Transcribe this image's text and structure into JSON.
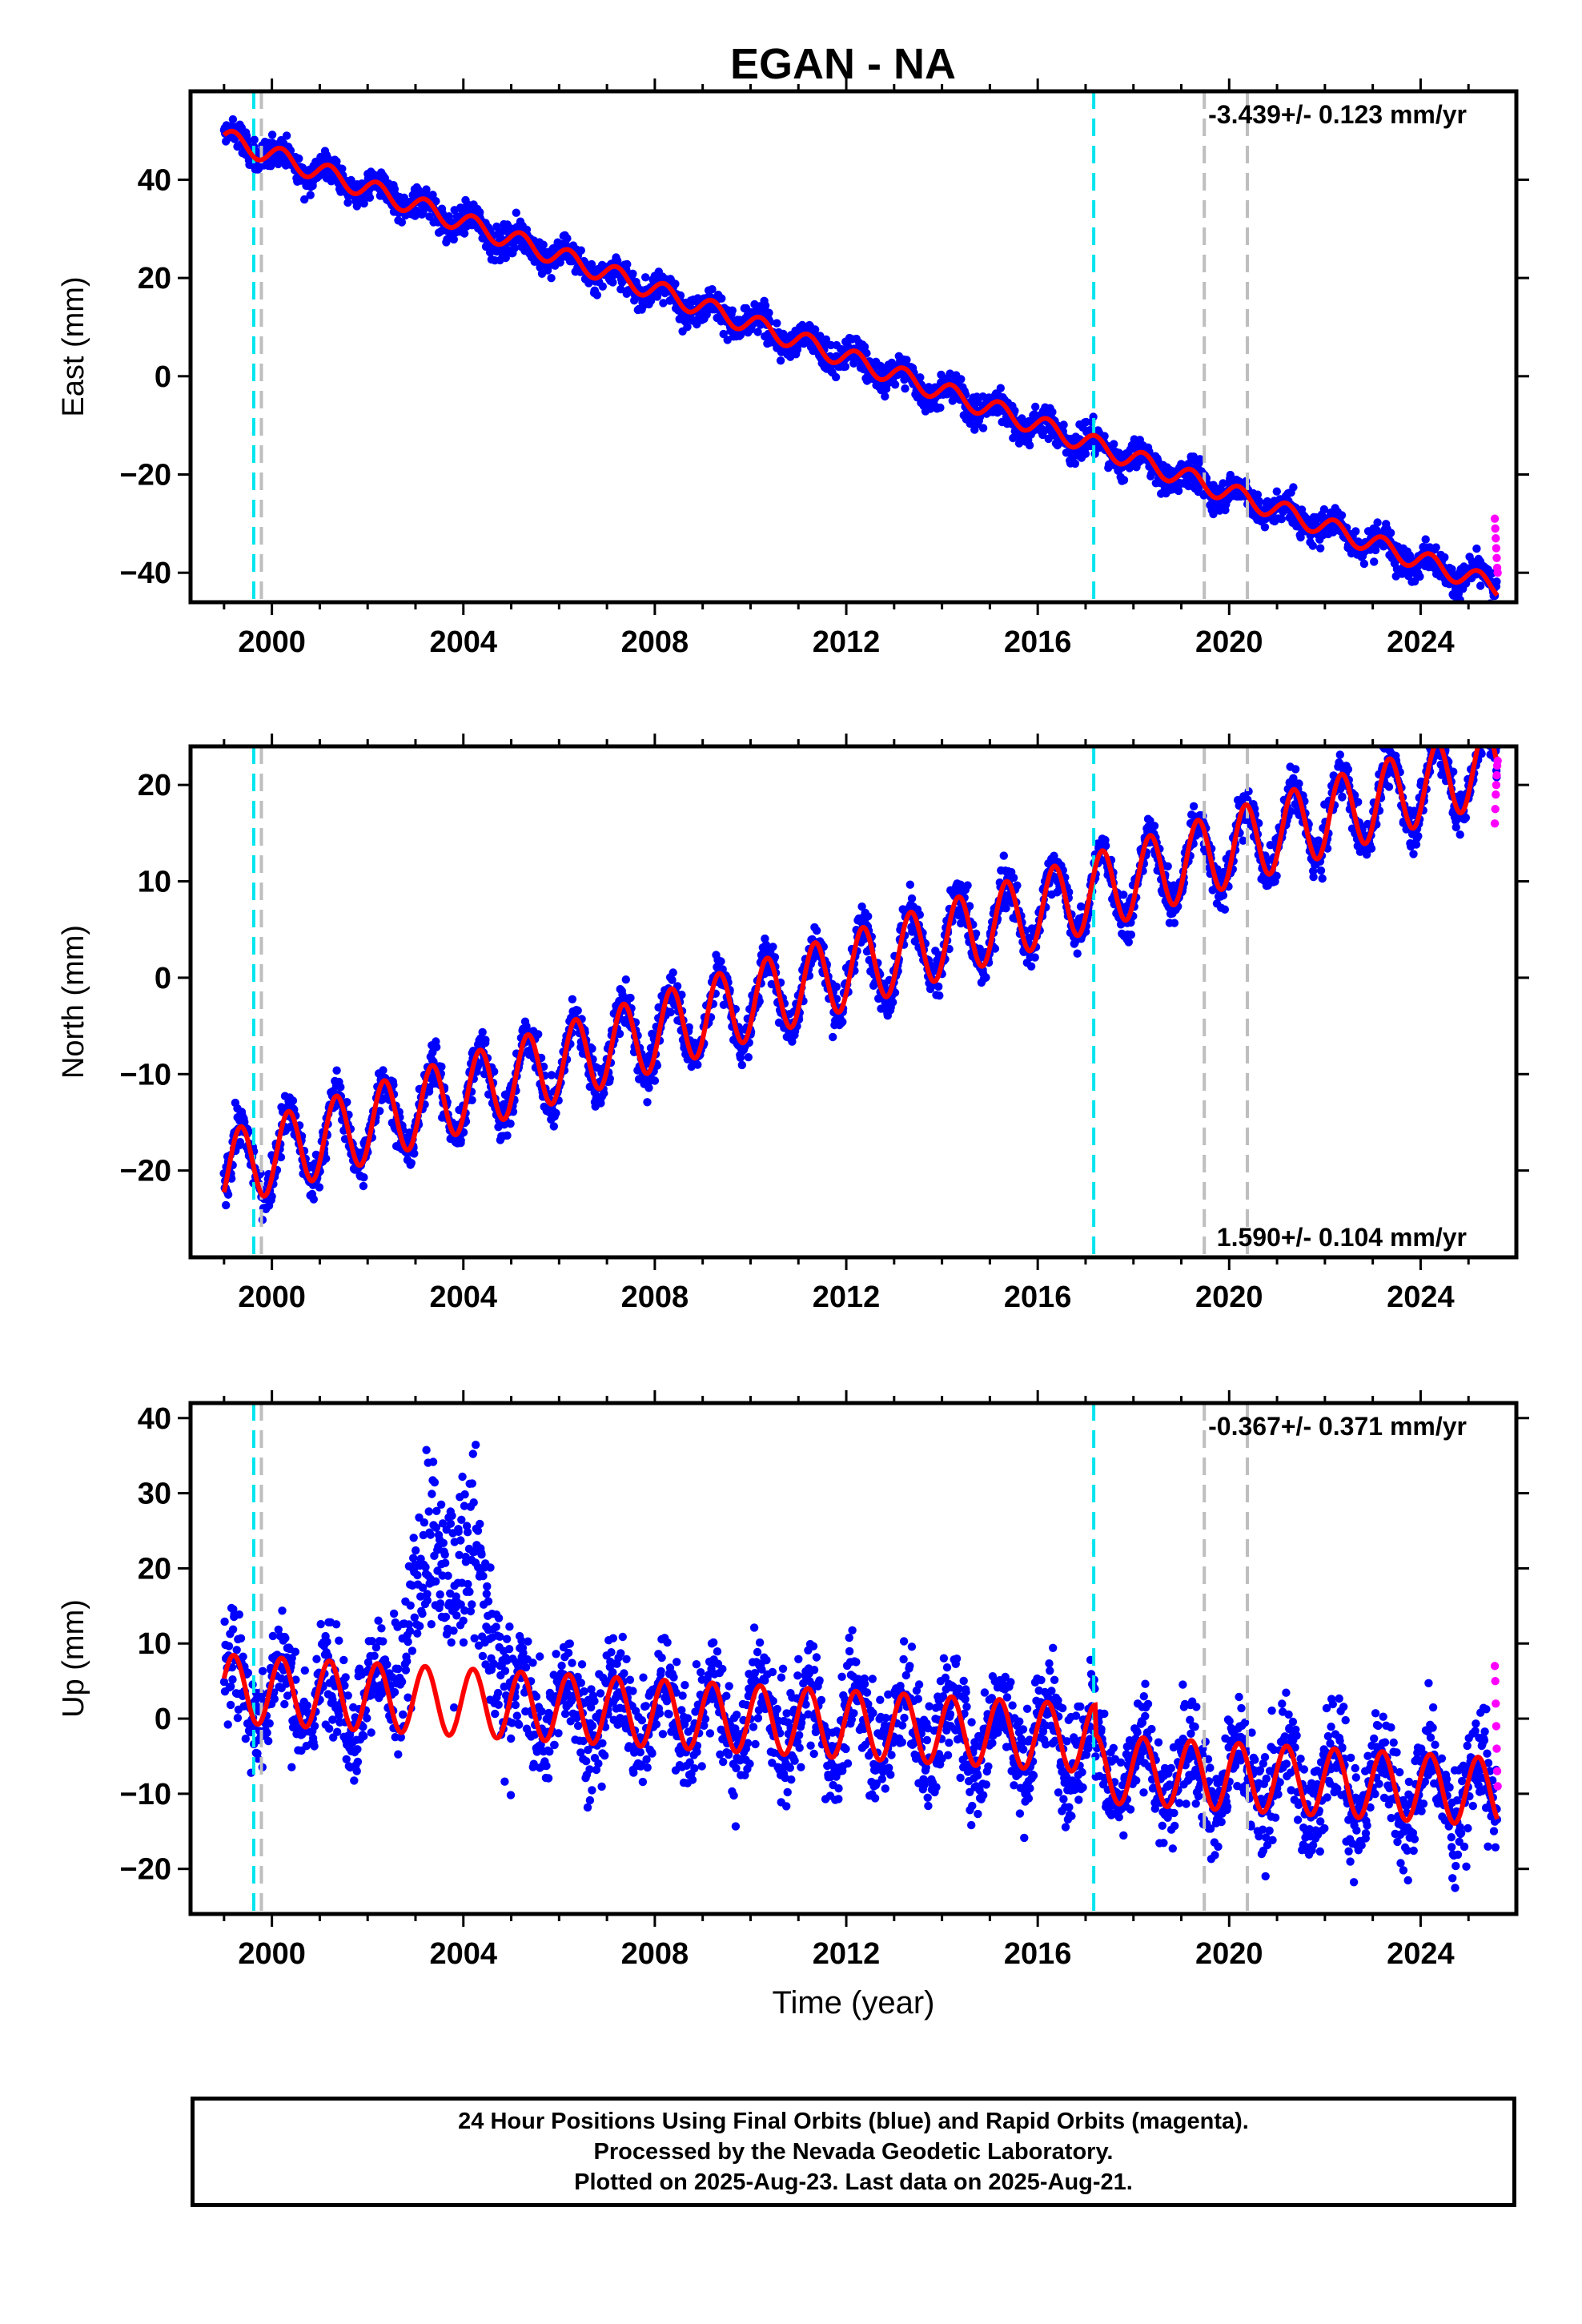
{
  "title": "EGAN - NA",
  "xlabel": "Time (year)",
  "footer": {
    "line1": "24 Hour Positions Using Final Orbits (blue) and Rapid Orbits (magenta).",
    "line2": "Processed by the Nevada Geodetic Laboratory.",
    "line3": "Plotted on 2025-Aug-23. Last data on 2025-Aug-21."
  },
  "colors": {
    "final_orbits": "#0000ff",
    "rapid_orbits": "#ff00ff",
    "model": "#ff0000",
    "equipment_change": "#00e5ee",
    "other_event": "#bebebe"
  },
  "chart_data": [
    {
      "type": "scatter",
      "ylabel": "East (mm)",
      "rate_label": "-3.439+/- 0.123 mm/yr",
      "rate_position": "top-right",
      "xlim": [
        1998.3,
        2026.0
      ],
      "ylim": [
        -46,
        58
      ],
      "xticks": [
        2000,
        2004,
        2008,
        2012,
        2016,
        2020,
        2024
      ],
      "yticks": [
        -40,
        -20,
        0,
        20,
        40
      ],
      "data_start": 1999.0,
      "data_end": 2025.6,
      "trend": {
        "value_at_1999": 48.5,
        "rate_mm_yr": -3.439
      },
      "seasonal_amplitude": 2.0,
      "scatter_spread": 2.2,
      "offsets": [
        {
          "year": 1999.7,
          "mm": 0
        }
      ],
      "model_series": [
        {
          "x": 1999.0,
          "y": 51.5
        },
        {
          "x": 1999.5,
          "y": 46.0
        },
        {
          "x": 2000.0,
          "y": 44.8
        },
        {
          "x": 2001.0,
          "y": 41.3
        },
        {
          "x": 2002.0,
          "y": 37.9
        },
        {
          "x": 2003.0,
          "y": 34.5
        },
        {
          "x": 2004.0,
          "y": 31.0
        },
        {
          "x": 2005.0,
          "y": 27.6
        },
        {
          "x": 2006.0,
          "y": 24.2
        },
        {
          "x": 2008.0,
          "y": 17.3
        },
        {
          "x": 2010.0,
          "y": 10.4
        },
        {
          "x": 2012.0,
          "y": 3.5
        },
        {
          "x": 2014.0,
          "y": -3.4
        },
        {
          "x": 2016.0,
          "y": -10.3
        },
        {
          "x": 2017.2,
          "y": -14.3
        },
        {
          "x": 2018.0,
          "y": -12.0
        },
        {
          "x": 2020.0,
          "y": -18.9
        },
        {
          "x": 2022.0,
          "y": -25.8
        },
        {
          "x": 2024.0,
          "y": -32.7
        },
        {
          "x": 2025.6,
          "y": -39.5
        }
      ],
      "rapid_points": [
        {
          "x": 2025.55,
          "y": -29
        },
        {
          "x": 2025.56,
          "y": -31
        },
        {
          "x": 2025.57,
          "y": -33
        },
        {
          "x": 2025.58,
          "y": -35
        },
        {
          "x": 2025.59,
          "y": -37
        },
        {
          "x": 2025.6,
          "y": -39
        },
        {
          "x": 2025.61,
          "y": -40
        }
      ]
    },
    {
      "type": "scatter",
      "ylabel": "North (mm)",
      "rate_label": "1.590+/- 0.104 mm/yr",
      "rate_position": "bottom-right",
      "xlim": [
        1998.3,
        2026.0
      ],
      "ylim": [
        -29,
        24
      ],
      "xticks": [
        2000,
        2004,
        2008,
        2012,
        2016,
        2020,
        2024
      ],
      "yticks": [
        -20,
        -10,
        0,
        10,
        20
      ],
      "data_start": 1999.0,
      "data_end": 2025.6,
      "trend": {
        "value_at_1999": -20.0,
        "rate_mm_yr": 1.59
      },
      "seasonal_amplitude": 4.0,
      "scatter_spread": 1.6,
      "rapid_points": [
        {
          "x": 2025.55,
          "y": 16
        },
        {
          "x": 2025.56,
          "y": 17.5
        },
        {
          "x": 2025.57,
          "y": 19
        },
        {
          "x": 2025.58,
          "y": 20
        },
        {
          "x": 2025.59,
          "y": 21
        },
        {
          "x": 2025.6,
          "y": 22
        },
        {
          "x": 2025.61,
          "y": 22.5
        }
      ]
    },
    {
      "type": "scatter",
      "ylabel": "Up (mm)",
      "rate_label": "-0.367+/- 0.371 mm/yr",
      "rate_position": "top-right",
      "xlim": [
        1998.3,
        2026.0
      ],
      "ylim": [
        -26,
        42
      ],
      "xticks": [
        2000,
        2004,
        2008,
        2012,
        2016,
        2020,
        2024
      ],
      "yticks": [
        -20,
        -10,
        0,
        10,
        20,
        30,
        40
      ],
      "data_start": 1999.0,
      "data_end": 2025.6,
      "trend": {
        "value_at_1999": 4.0,
        "rate_mm_yr": -0.367
      },
      "seasonal_amplitude": 4.5,
      "scatter_spread": 5.0,
      "anomaly": {
        "start": 2002.5,
        "end": 2005.0,
        "peak_mm": 20
      },
      "offsets": [
        {
          "year": 2017.2,
          "mm": -4
        }
      ],
      "rapid_points": [
        {
          "x": 2025.55,
          "y": 7
        },
        {
          "x": 2025.56,
          "y": 5
        },
        {
          "x": 2025.57,
          "y": 2
        },
        {
          "x": 2025.58,
          "y": -1
        },
        {
          "x": 2025.59,
          "y": -4
        },
        {
          "x": 2025.6,
          "y": -7
        },
        {
          "x": 2025.61,
          "y": -9
        }
      ]
    }
  ],
  "event_lines": [
    {
      "year": 1999.62,
      "kind": "equipment_change"
    },
    {
      "year": 1999.78,
      "kind": "other_event"
    },
    {
      "year": 2017.17,
      "kind": "equipment_change"
    },
    {
      "year": 2019.48,
      "kind": "other_event"
    },
    {
      "year": 2020.38,
      "kind": "other_event"
    }
  ]
}
